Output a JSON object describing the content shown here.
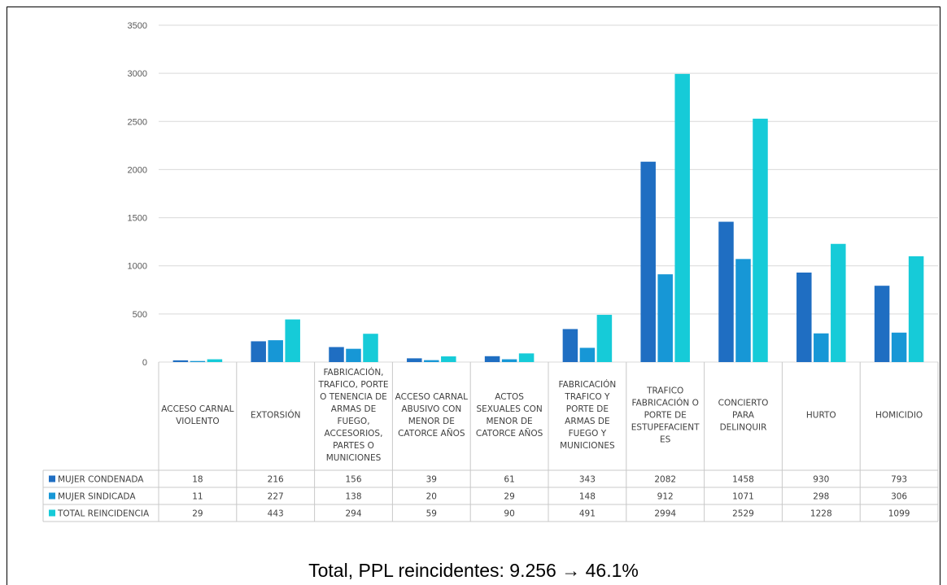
{
  "chart_data": {
    "type": "bar",
    "categories": [
      [
        "ACCESO CARNAL",
        "VIOLENTO"
      ],
      [
        "EXTORSIÓN"
      ],
      [
        "FABRICACIÓN,",
        "TRAFICO, PORTE",
        "O TENENCIA DE",
        "ARMAS DE",
        "FUEGO,",
        "ACCESORIOS,",
        "PARTES O",
        "MUNICIONES"
      ],
      [
        "ACCESO CARNAL",
        "ABUSIVO CON",
        "MENOR DE",
        "CATORCE AÑOS"
      ],
      [
        "ACTOS",
        "SEXUALES CON",
        "MENOR DE",
        "CATORCE AÑOS"
      ],
      [
        "FABRICACIÓN",
        "TRAFICO Y",
        "PORTE DE",
        "ARMAS DE",
        "FUEGO Y",
        "MUNICIONES"
      ],
      [
        "TRAFICO",
        "FABRICACIÓN O",
        "PORTE DE",
        "ESTUPEFACIENT",
        "ES"
      ],
      [
        "CONCIERTO",
        "PARA",
        "DELINQUIR"
      ],
      [
        "HURTO"
      ],
      [
        "HOMICIDIO"
      ]
    ],
    "series": [
      {
        "name": "MUJER CONDENADA",
        "color": "#1f6ec2",
        "values": [
          18,
          216,
          156,
          39,
          61,
          343,
          2082,
          1458,
          930,
          793
        ]
      },
      {
        "name": "MUJER SINDICADA",
        "color": "#1797d6",
        "values": [
          11,
          227,
          138,
          20,
          29,
          148,
          912,
          1071,
          298,
          306
        ]
      },
      {
        "name": "TOTAL REINCIDENCIA",
        "color": "#16cbd8",
        "values": [
          29,
          443,
          294,
          59,
          90,
          491,
          2994,
          2529,
          1228,
          1099
        ]
      }
    ],
    "ylim": [
      0,
      3500
    ],
    "yticks": [
      0,
      500,
      1000,
      1500,
      2000,
      2500,
      3000,
      3500
    ],
    "grid": true,
    "legend": "data-table"
  },
  "caption": "Total, PPL reincidentes: 9.256 → 46.1%"
}
